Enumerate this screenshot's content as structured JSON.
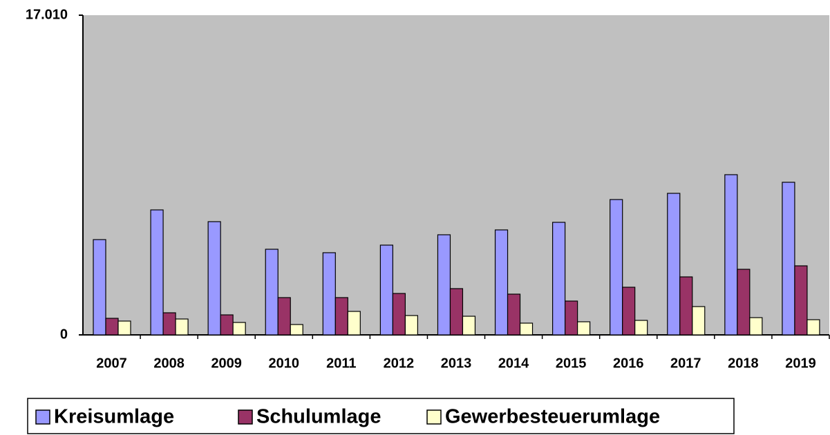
{
  "chart_data": {
    "type": "bar",
    "categories": [
      "2007",
      "2008",
      "2009",
      "2010",
      "2011",
      "2012",
      "2013",
      "2014",
      "2015",
      "2016",
      "2017",
      "2018",
      "2019"
    ],
    "series": [
      {
        "name": "Kreisumlage",
        "color": "#9999ff",
        "values": [
          5070,
          6650,
          6025,
          4556,
          4372,
          4776,
          5327,
          5585,
          5989,
          7201,
          7532,
          8524,
          8120
        ]
      },
      {
        "name": "Schulumlage",
        "color": "#993366",
        "values": [
          882,
          1176,
          1065,
          1984,
          1984,
          2204,
          2462,
          2168,
          1800,
          2535,
          3086,
          3490,
          3674
        ]
      },
      {
        "name": "Gewerbesteuerumlage",
        "color": "#ffffcc",
        "values": [
          735,
          845,
          661,
          551,
          1249,
          1029,
          992,
          625,
          698,
          772,
          1506,
          918,
          808
        ]
      }
    ],
    "ylim": [
      0,
      17010
    ],
    "yticks": [
      0,
      {
        "value": 17010,
        "label": "17.010"
      }
    ],
    "plot_background": "#c0c0c0",
    "legend": "bottom"
  }
}
